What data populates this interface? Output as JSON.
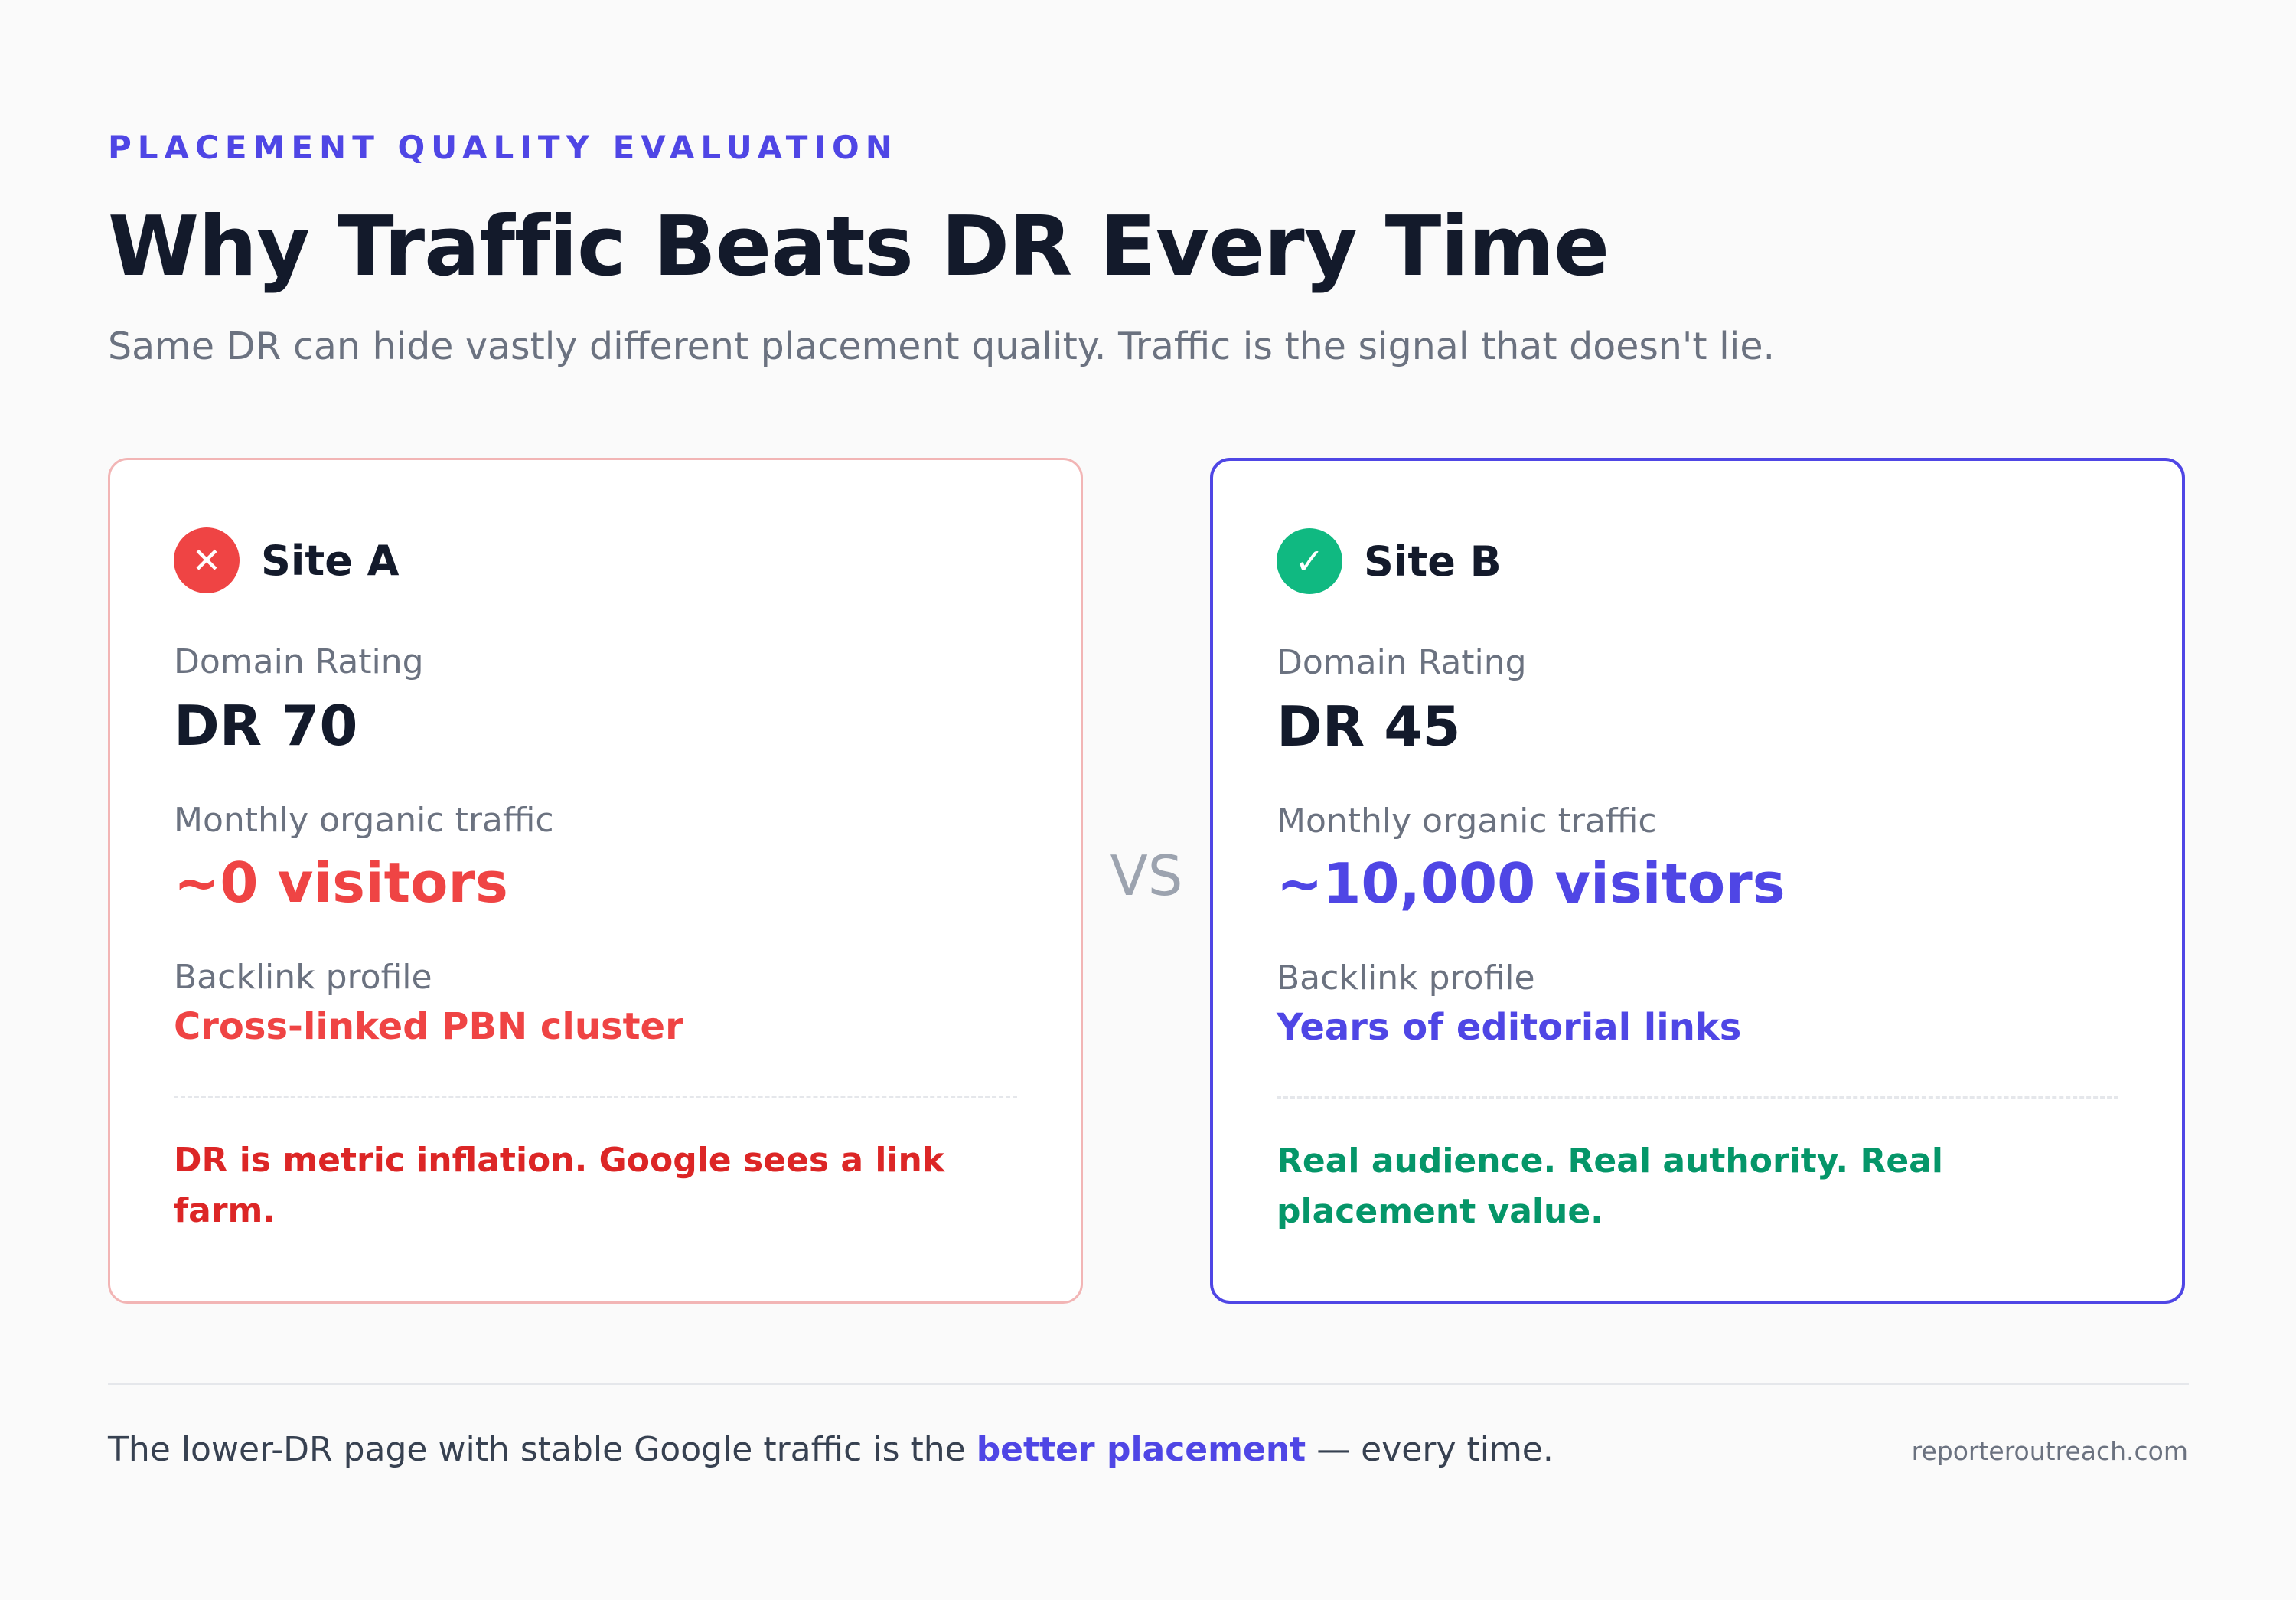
{
  "header": {
    "eyebrow": "PLACEMENT QUALITY EVALUATION",
    "title": "Why Traffic Beats DR Every Time",
    "subtitle": "Same DR can hide vastly different placement quality. Traffic is the signal that doesn't lie."
  },
  "comparison": {
    "vs_label": "VS",
    "site_a": {
      "icon": "x-mark-icon",
      "icon_glyph": "✕",
      "name": "Site A",
      "dr_label": "Domain Rating",
      "dr_value": "DR 70",
      "traffic_label": "Monthly organic traffic",
      "traffic_value": "~0 visitors",
      "backlink_label": "Backlink profile",
      "backlink_value": "Cross-linked PBN cluster",
      "verdict": "DR is metric inflation. Google sees a link farm.",
      "accent_color": "#ef4444",
      "border_color": "#f2b5b5"
    },
    "site_b": {
      "icon": "check-mark-icon",
      "icon_glyph": "✓",
      "name": "Site B",
      "dr_label": "Domain Rating",
      "dr_value": "DR 45",
      "traffic_label": "Monthly organic traffic",
      "traffic_value": "~10,000 visitors",
      "backlink_label": "Backlink profile",
      "backlink_value": "Years of editorial links",
      "verdict": "Real audience. Real authority. Real placement value.",
      "accent_color": "#4f46e5",
      "verdict_color": "#059669",
      "border_color": "#4f46e5"
    }
  },
  "footer": {
    "text_before": "The lower-DR page with stable Google traffic is the ",
    "highlight": "better placement",
    "text_after": " — every time.",
    "source": "reporteroutreach.com"
  }
}
